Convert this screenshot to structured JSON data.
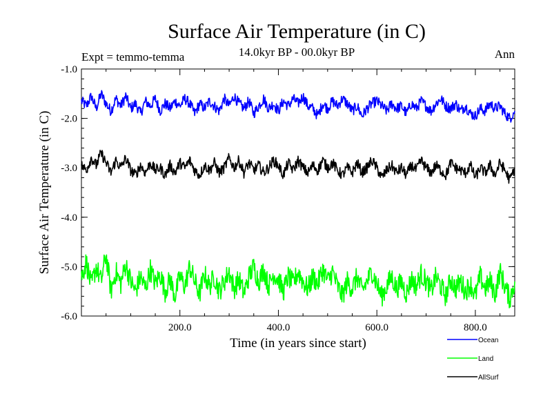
{
  "chart_data": {
    "type": "line",
    "title": "Surface Air Temperature (in C)",
    "subtitle": "14.0kyr BP - 00.0kyr BP",
    "experiment_label": "Expt = temmo-temma",
    "season_label": "Ann",
    "xlabel": "Time (in years since start)",
    "ylabel": "Surface Air Temperature (in C)",
    "xlim": [
      0,
      880
    ],
    "ylim": [
      -6.0,
      -1.0
    ],
    "x_ticks": [
      200,
      400,
      600,
      800
    ],
    "x_tick_labels": [
      "200.0",
      "400.0",
      "600.0",
      "800.0"
    ],
    "y_ticks": [
      -6.0,
      -5.0,
      -4.0,
      -3.0,
      -2.0,
      -1.0
    ],
    "y_tick_labels": [
      "-6.0",
      "-5.0",
      "-4.0",
      "-3.0",
      "-2.0",
      "-1.0"
    ],
    "grid": false,
    "legend_position": "below-right",
    "series": [
      {
        "name": "Ocean",
        "color": "#0000ff",
        "x_start": 0,
        "x_step": 10,
        "values": [
          -1.65,
          -1.75,
          -1.55,
          -1.8,
          -1.5,
          -1.7,
          -1.85,
          -1.6,
          -1.75,
          -1.55,
          -1.8,
          -1.7,
          -1.9,
          -1.65,
          -1.75,
          -1.6,
          -1.85,
          -1.7,
          -1.8,
          -1.65,
          -1.75,
          -1.6,
          -1.7,
          -1.9,
          -1.7,
          -1.8,
          -1.65,
          -1.75,
          -1.85,
          -1.6,
          -1.75,
          -1.55,
          -1.7,
          -1.8,
          -1.65,
          -1.9,
          -1.75,
          -1.6,
          -1.8,
          -1.7,
          -1.85,
          -1.65,
          -1.75,
          -1.6,
          -1.7,
          -1.55,
          -1.75,
          -1.8,
          -1.95,
          -1.7,
          -1.8,
          -1.65,
          -1.75,
          -1.6,
          -1.7,
          -1.85,
          -1.75,
          -1.95,
          -1.8,
          -1.7,
          -1.65,
          -1.75,
          -1.85,
          -1.7,
          -1.8,
          -1.75,
          -1.9,
          -1.7,
          -1.8,
          -1.65,
          -1.75,
          -1.85,
          -1.7,
          -1.6,
          -1.75,
          -1.8,
          -1.7,
          -1.85,
          -1.75,
          -1.9,
          -1.95,
          -1.8,
          -1.85,
          -1.7,
          -1.8,
          -1.75,
          -1.9,
          -2.0,
          -1.85
        ]
      },
      {
        "name": "Land",
        "color": "#00ff00",
        "x_start": 0,
        "x_step": 10,
        "values": [
          -5.2,
          -4.9,
          -5.4,
          -5.0,
          -5.3,
          -4.75,
          -5.5,
          -5.1,
          -5.35,
          -4.95,
          -5.3,
          -5.5,
          -5.2,
          -5.45,
          -5.05,
          -5.35,
          -5.15,
          -5.5,
          -5.25,
          -5.6,
          -5.2,
          -5.4,
          -5.0,
          -5.3,
          -5.55,
          -5.15,
          -5.4,
          -5.2,
          -5.5,
          -5.3,
          -5.1,
          -5.45,
          -5.25,
          -5.55,
          -5.2,
          -5.0,
          -5.3,
          -5.05,
          -5.4,
          -5.15,
          -5.25,
          -5.5,
          -5.2,
          -5.35,
          -5.1,
          -5.3,
          -5.45,
          -5.2,
          -5.35,
          -5.05,
          -5.3,
          -5.1,
          -5.4,
          -5.6,
          -5.3,
          -5.45,
          -5.2,
          -5.5,
          -5.3,
          -5.1,
          -5.35,
          -5.6,
          -5.4,
          -5.2,
          -5.45,
          -5.3,
          -5.55,
          -5.25,
          -5.4,
          -5.15,
          -5.3,
          -5.5,
          -5.2,
          -5.4,
          -5.6,
          -5.25,
          -5.45,
          -5.3,
          -5.5,
          -5.35,
          -5.6,
          -5.2,
          -5.45,
          -5.3,
          -5.55,
          -5.1,
          -5.4,
          -5.65,
          -5.3
        ]
      },
      {
        "name": "AllSurf",
        "color": "#000000",
        "x_start": 0,
        "x_step": 10,
        "values": [
          -2.95,
          -3.05,
          -2.8,
          -2.95,
          -2.7,
          -2.9,
          -3.1,
          -2.85,
          -3.0,
          -2.8,
          -3.05,
          -3.15,
          -2.95,
          -3.1,
          -2.9,
          -3.05,
          -3.0,
          -3.15,
          -2.95,
          -3.1,
          -2.9,
          -3.0,
          -2.85,
          -3.05,
          -3.15,
          -2.95,
          -3.05,
          -2.9,
          -3.1,
          -3.0,
          -2.8,
          -3.0,
          -2.85,
          -3.1,
          -2.9,
          -3.05,
          -2.95,
          -3.1,
          -3.0,
          -2.85,
          -2.95,
          -3.15,
          -2.9,
          -3.05,
          -2.85,
          -3.0,
          -3.1,
          -2.95,
          -3.05,
          -2.85,
          -3.0,
          -2.9,
          -3.05,
          -3.15,
          -3.0,
          -3.1,
          -2.9,
          -3.1,
          -3.0,
          -2.85,
          -3.0,
          -3.2,
          -3.05,
          -2.95,
          -3.1,
          -3.0,
          -3.15,
          -2.95,
          -3.05,
          -2.85,
          -3.0,
          -3.1,
          -2.95,
          -3.05,
          -3.15,
          -2.9,
          -3.0,
          -3.05,
          -3.1,
          -2.95,
          -3.2,
          -3.0,
          -3.1,
          -2.95,
          -3.15,
          -2.9,
          -3.05,
          -3.25,
          -3.0
        ]
      }
    ]
  }
}
